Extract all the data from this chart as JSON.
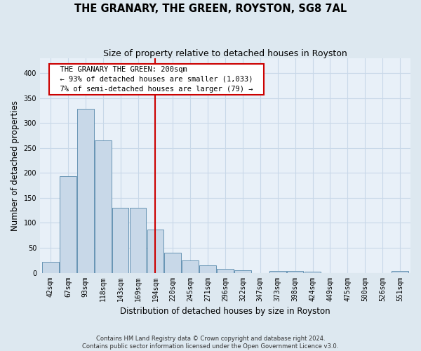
{
  "title": "THE GRANARY, THE GREEN, ROYSTON, SG8 7AL",
  "subtitle": "Size of property relative to detached houses in Royston",
  "xlabel": "Distribution of detached houses by size in Royston",
  "ylabel": "Number of detached properties",
  "categories": [
    "42sqm",
    "67sqm",
    "93sqm",
    "118sqm",
    "143sqm",
    "169sqm",
    "194sqm",
    "220sqm",
    "245sqm",
    "271sqm",
    "296sqm",
    "322sqm",
    "347sqm",
    "373sqm",
    "398sqm",
    "424sqm",
    "449sqm",
    "475sqm",
    "500sqm",
    "526sqm",
    "551sqm"
  ],
  "values": [
    22,
    193,
    328,
    265,
    130,
    130,
    87,
    40,
    25,
    15,
    8,
    5,
    0,
    4,
    3,
    2,
    0,
    0,
    0,
    0,
    3
  ],
  "bar_color": "#c8d8e8",
  "bar_edge_color": "#5588aa",
  "highlight_index": 6,
  "highlight_line_color": "#cc0000",
  "annotation_text": "  THE GRANARY THE GREEN: 200sqm  \n  ← 93% of detached houses are smaller (1,033)  \n  7% of semi-detached houses are larger (79) →  ",
  "annotation_box_color": "#cc0000",
  "ylim": [
    0,
    430
  ],
  "yticks": [
    0,
    50,
    100,
    150,
    200,
    250,
    300,
    350,
    400
  ],
  "grid_color": "#c8d8e8",
  "background_color": "#dde8f0",
  "plot_bg_color": "#e8f0f8",
  "footer_text": "Contains HM Land Registry data © Crown copyright and database right 2024.\nContains public sector information licensed under the Open Government Licence v3.0.",
  "title_fontsize": 10.5,
  "subtitle_fontsize": 9,
  "tick_fontsize": 7,
  "label_fontsize": 8.5,
  "annotation_fontsize": 7.5
}
